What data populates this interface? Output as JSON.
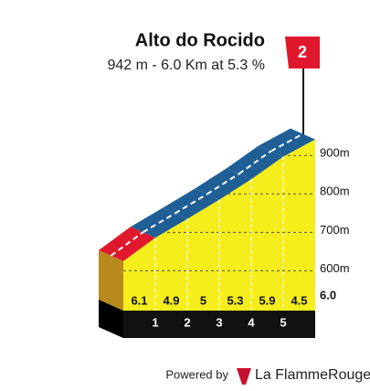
{
  "chart_data": {
    "type": "climb-profile",
    "title": "Alto do Rocido",
    "subtitle": "942 m - 6.0 Km at 5.3 %",
    "category": "2",
    "summit_elevation": 942,
    "gradients": [
      6.1,
      4.9,
      5.0,
      5.3,
      5.9,
      4.5
    ],
    "xlim": [
      0,
      6
    ],
    "xticks": [
      1,
      2,
      3,
      4,
      5,
      {
        "value": 6,
        "label": "6.0"
      }
    ],
    "ylim": [
      520,
      960
    ],
    "yticks": [
      {
        "value": 600,
        "label": "600m"
      },
      {
        "value": 700,
        "label": "700m"
      },
      {
        "value": 800,
        "label": "800m"
      },
      {
        "value": 900,
        "label": "900m"
      }
    ],
    "grid": true,
    "colors": {
      "face": "#f5ee1c",
      "road": "#1f5f96",
      "road_start": "#e0182d",
      "side": "#b88a1e",
      "base": "#111111"
    },
    "footer": {
      "powered": "Powered by",
      "brand": "La FlammeRouge"
    }
  }
}
